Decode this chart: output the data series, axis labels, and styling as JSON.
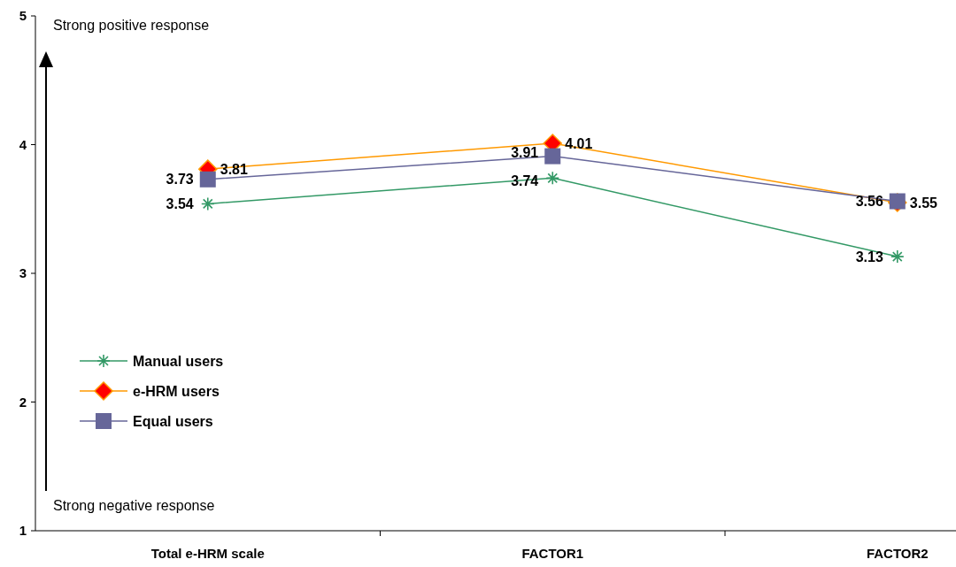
{
  "chart_data": {
    "type": "line",
    "categories": [
      "Total e-HRM scale",
      "FACTOR1",
      "FACTOR2"
    ],
    "series": [
      {
        "name": "Manual users",
        "color": "#339966",
        "marker": "cross",
        "values": [
          3.54,
          3.74,
          3.13
        ]
      },
      {
        "name": "e-HRM users",
        "color": "#ff9900",
        "marker": "diamond",
        "values": [
          3.81,
          4.01,
          3.55
        ]
      },
      {
        "name": "Equal users",
        "color": "#666699",
        "marker": "square",
        "values": [
          3.73,
          3.91,
          3.56
        ]
      }
    ],
    "ylim": [
      1,
      5
    ],
    "yticks": [
      1,
      2,
      3,
      4,
      5
    ],
    "data_labels": true,
    "legend": "left",
    "grid": false,
    "annotations": [
      "Strong positive response",
      "Strong negative response"
    ]
  }
}
